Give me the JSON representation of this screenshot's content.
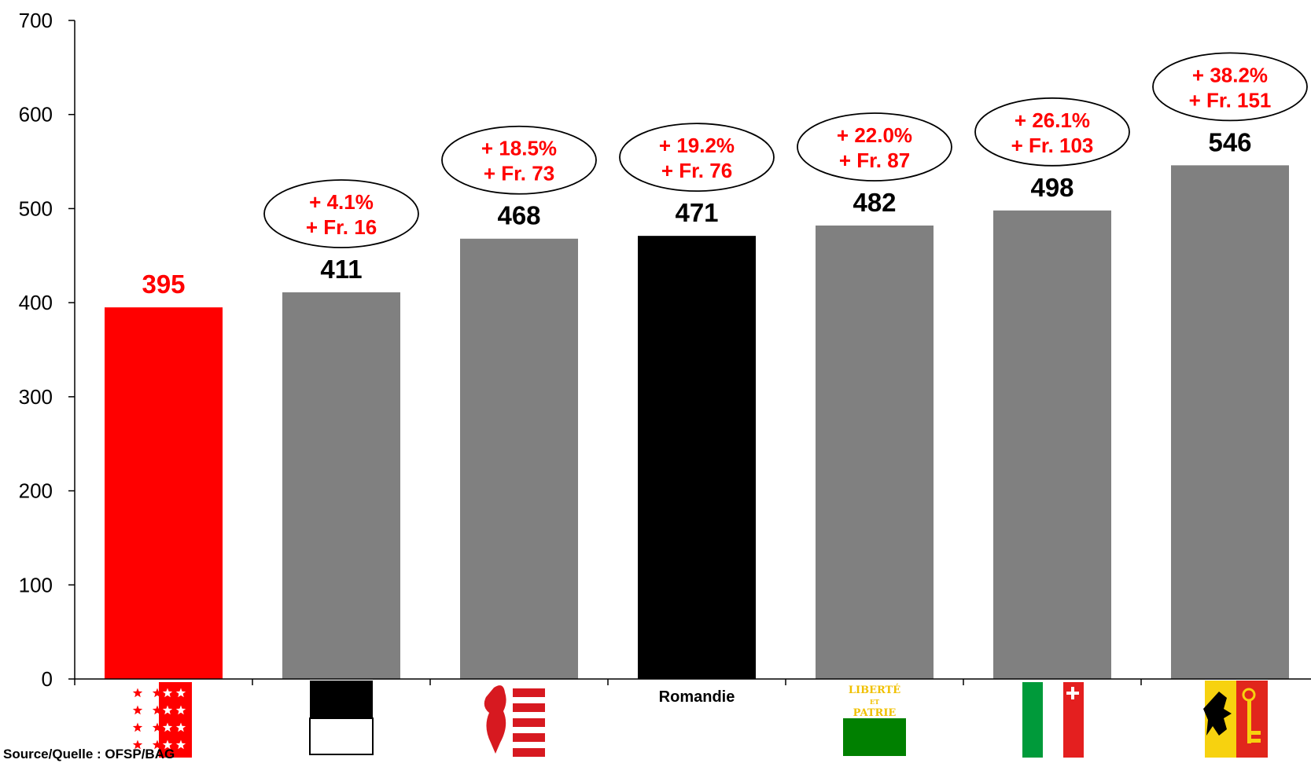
{
  "chart_data": {
    "type": "bar",
    "categories": [
      "Valais",
      "Fribourg",
      "Jura",
      "Romandie",
      "Vaud",
      "Neuchâtel",
      "Genève"
    ],
    "category_labels": [
      "",
      "",
      "",
      "Romandie",
      "",
      "",
      ""
    ],
    "category_flags": [
      "flag-valais",
      "flag-fribourg",
      "flag-jura",
      "",
      "flag-vaud",
      "flag-neuchatel",
      "flag-geneve"
    ],
    "values": [
      395,
      411,
      468,
      471,
      482,
      498,
      546
    ],
    "value_labels": [
      "395",
      "411",
      "468",
      "471",
      "482",
      "498",
      "546"
    ],
    "bar_colors": [
      "#ff0000",
      "#808080",
      "#808080",
      "#000000",
      "#808080",
      "#808080",
      "#808080"
    ],
    "value_label_colors": [
      "#ff0000",
      "#000000",
      "#000000",
      "#000000",
      "#000000",
      "#000000",
      "#000000"
    ],
    "annotations": [
      null,
      [
        "+ 4.1%",
        "+ Fr. 16"
      ],
      [
        "+ 18.5%",
        "+ Fr. 73"
      ],
      [
        "+ 19.2%",
        "+ Fr. 76"
      ],
      [
        "+ 22.0%",
        "+ Fr. 87"
      ],
      [
        "+ 26.1%",
        "+ Fr. 103"
      ],
      [
        "+ 38.2%",
        "+ Fr. 151"
      ]
    ],
    "ylim": [
      0,
      700
    ],
    "yticks": [
      0,
      100,
      200,
      300,
      400,
      500,
      600,
      700
    ],
    "grid": false,
    "legend": "none",
    "flag_text": {
      "vaud_line1": "LIBERTÉ",
      "vaud_line2": "ET",
      "vaud_line3": "PATRIE"
    }
  },
  "source": "Source/Quelle : OFSP/BAG"
}
